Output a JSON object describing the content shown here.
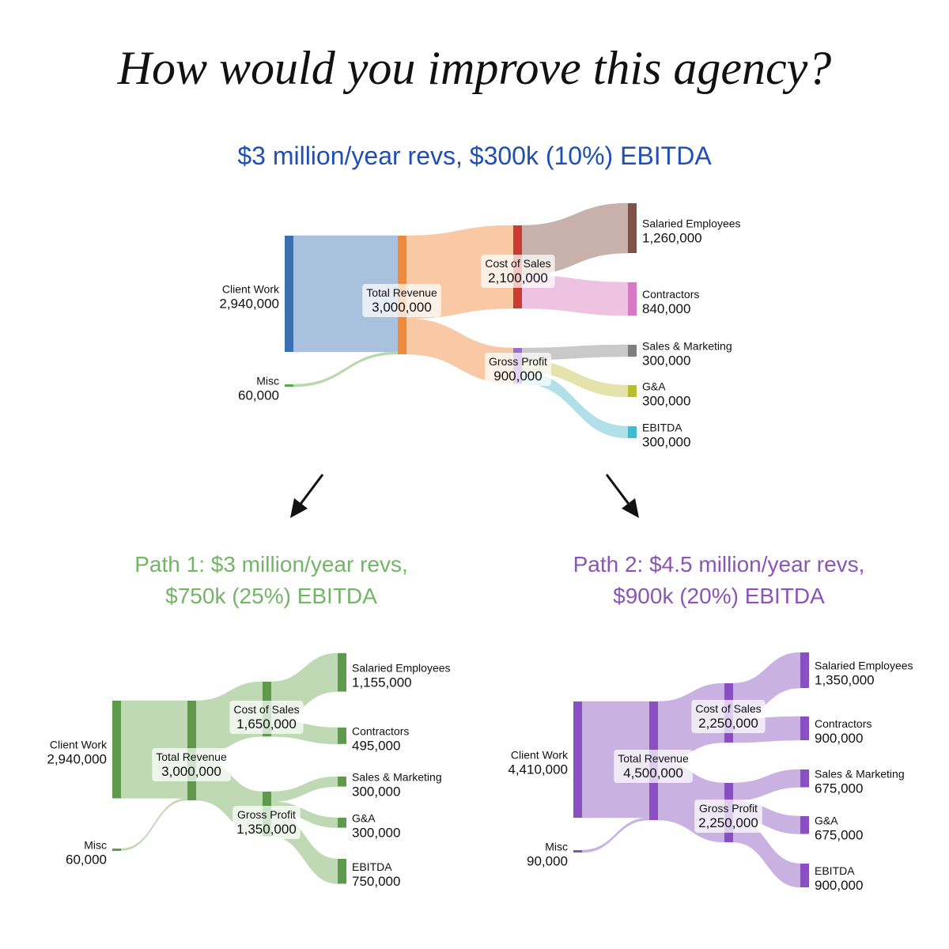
{
  "headline": "How would you improve this agency?",
  "diagrams": [
    {
      "key": "current",
      "title_lines": [
        "$3 million/year revs, $300k (10%) EBITDA"
      ],
      "title_color": "#1f4fb5",
      "nodes": [
        {
          "id": "client_work",
          "name": "Client Work",
          "value": "2,940,000",
          "color": "#3b6fb0"
        },
        {
          "id": "misc",
          "name": "Misc",
          "value": "60,000",
          "color": "#5aa64f"
        },
        {
          "id": "total_revenue",
          "name": "Total Revenue",
          "value": "3,000,000",
          "color": "#f08a3a"
        },
        {
          "id": "cost_of_sales",
          "name": "Cost of Sales",
          "value": "2,100,000",
          "color": "#cc3b32"
        },
        {
          "id": "gross_profit",
          "name": "Gross Profit",
          "value": "900,000",
          "color": "#9a6bd0"
        },
        {
          "id": "salaried",
          "name": "Salaried Employees",
          "value": "1,260,000",
          "color": "#7d5247"
        },
        {
          "id": "contractors",
          "name": "Contractors",
          "value": "840,000",
          "color": "#d878c4"
        },
        {
          "id": "sales_marketing",
          "name": "Sales & Marketing",
          "value": "300,000",
          "color": "#7f7f7f"
        },
        {
          "id": "ga",
          "name": "G&A",
          "value": "300,000",
          "color": "#bcbd2e"
        },
        {
          "id": "ebitda",
          "name": "EBITDA",
          "value": "300,000",
          "color": "#3fbcd0"
        }
      ],
      "links": [
        {
          "source": "client_work",
          "target": "total_revenue",
          "value": 2940000,
          "color": "#a9c1dc"
        },
        {
          "source": "misc",
          "target": "total_revenue",
          "value": 60000,
          "color": "#b7d8ae"
        },
        {
          "source": "total_revenue",
          "target": "cost_of_sales",
          "value": 2100000,
          "color": "#f8c9a4"
        },
        {
          "source": "total_revenue",
          "target": "gross_profit",
          "value": 900000,
          "color": "#f8c9a4"
        },
        {
          "source": "cost_of_sales",
          "target": "salaried",
          "value": 1260000,
          "color": "#c7b1aa"
        },
        {
          "source": "cost_of_sales",
          "target": "contractors",
          "value": 840000,
          "color": "#eec2e1"
        },
        {
          "source": "gross_profit",
          "target": "sales_marketing",
          "value": 300000,
          "color": "#c9c9c9"
        },
        {
          "source": "gross_profit",
          "target": "ga",
          "value": 300000,
          "color": "#e3e3ab"
        },
        {
          "source": "gross_profit",
          "target": "ebitda",
          "value": 300000,
          "color": "#b2e0e9"
        }
      ]
    },
    {
      "key": "path1",
      "title_lines": [
        "Path 1: $3 million/year revs,",
        "$750k (25%) EBITDA"
      ],
      "title_color": "#73b567",
      "nodes": [
        {
          "id": "client_work",
          "name": "Client Work",
          "value": "2,940,000",
          "color": "#5e9a4c"
        },
        {
          "id": "misc",
          "name": "Misc",
          "value": "60,000",
          "color": "#5e9a4c"
        },
        {
          "id": "total_revenue",
          "name": "Total Revenue",
          "value": "3,000,000",
          "color": "#5e9a4c"
        },
        {
          "id": "cost_of_sales",
          "name": "Cost of Sales",
          "value": "1,650,000",
          "color": "#5e9a4c"
        },
        {
          "id": "gross_profit",
          "name": "Gross Profit",
          "value": "1,350,000",
          "color": "#5e9a4c"
        },
        {
          "id": "salaried",
          "name": "Salaried Employees",
          "value": "1,155,000",
          "color": "#5e9a4c"
        },
        {
          "id": "contractors",
          "name": "Contractors",
          "value": "495,000",
          "color": "#5e9a4c"
        },
        {
          "id": "sales_marketing",
          "name": "Sales & Marketing",
          "value": "300,000",
          "color": "#5e9a4c"
        },
        {
          "id": "ga",
          "name": "G&A",
          "value": "300,000",
          "color": "#5e9a4c"
        },
        {
          "id": "ebitda",
          "name": "EBITDA",
          "value": "750,000",
          "color": "#5e9a4c"
        }
      ],
      "links": [
        {
          "source": "client_work",
          "target": "total_revenue",
          "value": 2940000,
          "color": "#c0d9b5"
        },
        {
          "source": "misc",
          "target": "total_revenue",
          "value": 60000,
          "color": "#c0d9b5"
        },
        {
          "source": "total_revenue",
          "target": "cost_of_sales",
          "value": 1650000,
          "color": "#c0d9b5"
        },
        {
          "source": "total_revenue",
          "target": "gross_profit",
          "value": 1350000,
          "color": "#c0d9b5"
        },
        {
          "source": "cost_of_sales",
          "target": "salaried",
          "value": 1155000,
          "color": "#c0d9b5"
        },
        {
          "source": "cost_of_sales",
          "target": "contractors",
          "value": 495000,
          "color": "#c0d9b5"
        },
        {
          "source": "gross_profit",
          "target": "sales_marketing",
          "value": 300000,
          "color": "#c0d9b5"
        },
        {
          "source": "gross_profit",
          "target": "ga",
          "value": 300000,
          "color": "#c0d9b5"
        },
        {
          "source": "gross_profit",
          "target": "ebitda",
          "value": 750000,
          "color": "#c0d9b5"
        }
      ]
    },
    {
      "key": "path2",
      "title_lines": [
        "Path 2: $4.5 million/year revs,",
        "$900k (20%) EBITDA"
      ],
      "title_color": "#8b55b8",
      "nodes": [
        {
          "id": "client_work",
          "name": "Client Work",
          "value": "4,410,000",
          "color": "#8a4fc0"
        },
        {
          "id": "misc",
          "name": "Misc",
          "value": "90,000",
          "color": "#8a4fc0"
        },
        {
          "id": "total_revenue",
          "name": "Total Revenue",
          "value": "4,500,000",
          "color": "#8a4fc0"
        },
        {
          "id": "cost_of_sales",
          "name": "Cost of Sales",
          "value": "2,250,000",
          "color": "#8a4fc0"
        },
        {
          "id": "gross_profit",
          "name": "Gross Profit",
          "value": "2,250,000",
          "color": "#8a4fc0"
        },
        {
          "id": "salaried",
          "name": "Salaried Employees",
          "value": "1,350,000",
          "color": "#8a4fc0"
        },
        {
          "id": "contractors",
          "name": "Contractors",
          "value": "900,000",
          "color": "#8a4fc0"
        },
        {
          "id": "sales_marketing",
          "name": "Sales & Marketing",
          "value": "675,000",
          "color": "#8a4fc0"
        },
        {
          "id": "ga",
          "name": "G&A",
          "value": "675,000",
          "color": "#8a4fc0"
        },
        {
          "id": "ebitda",
          "name": "EBITDA",
          "value": "900,000",
          "color": "#8a4fc0"
        }
      ],
      "links": [
        {
          "source": "client_work",
          "target": "total_revenue",
          "value": 4410000,
          "color": "#c9b2e1"
        },
        {
          "source": "misc",
          "target": "total_revenue",
          "value": 90000,
          "color": "#c9b2e1"
        },
        {
          "source": "total_revenue",
          "target": "cost_of_sales",
          "value": 2250000,
          "color": "#c9b2e1"
        },
        {
          "source": "total_revenue",
          "target": "gross_profit",
          "value": 2250000,
          "color": "#c9b2e1"
        },
        {
          "source": "cost_of_sales",
          "target": "salaried",
          "value": 1350000,
          "color": "#c9b2e1"
        },
        {
          "source": "cost_of_sales",
          "target": "contractors",
          "value": 900000,
          "color": "#c9b2e1"
        },
        {
          "source": "gross_profit",
          "target": "sales_marketing",
          "value": 675000,
          "color": "#c9b2e1"
        },
        {
          "source": "gross_profit",
          "target": "ga",
          "value": 675000,
          "color": "#c9b2e1"
        },
        {
          "source": "gross_profit",
          "target": "ebitda",
          "value": 900000,
          "color": "#c9b2e1"
        }
      ]
    }
  ]
}
